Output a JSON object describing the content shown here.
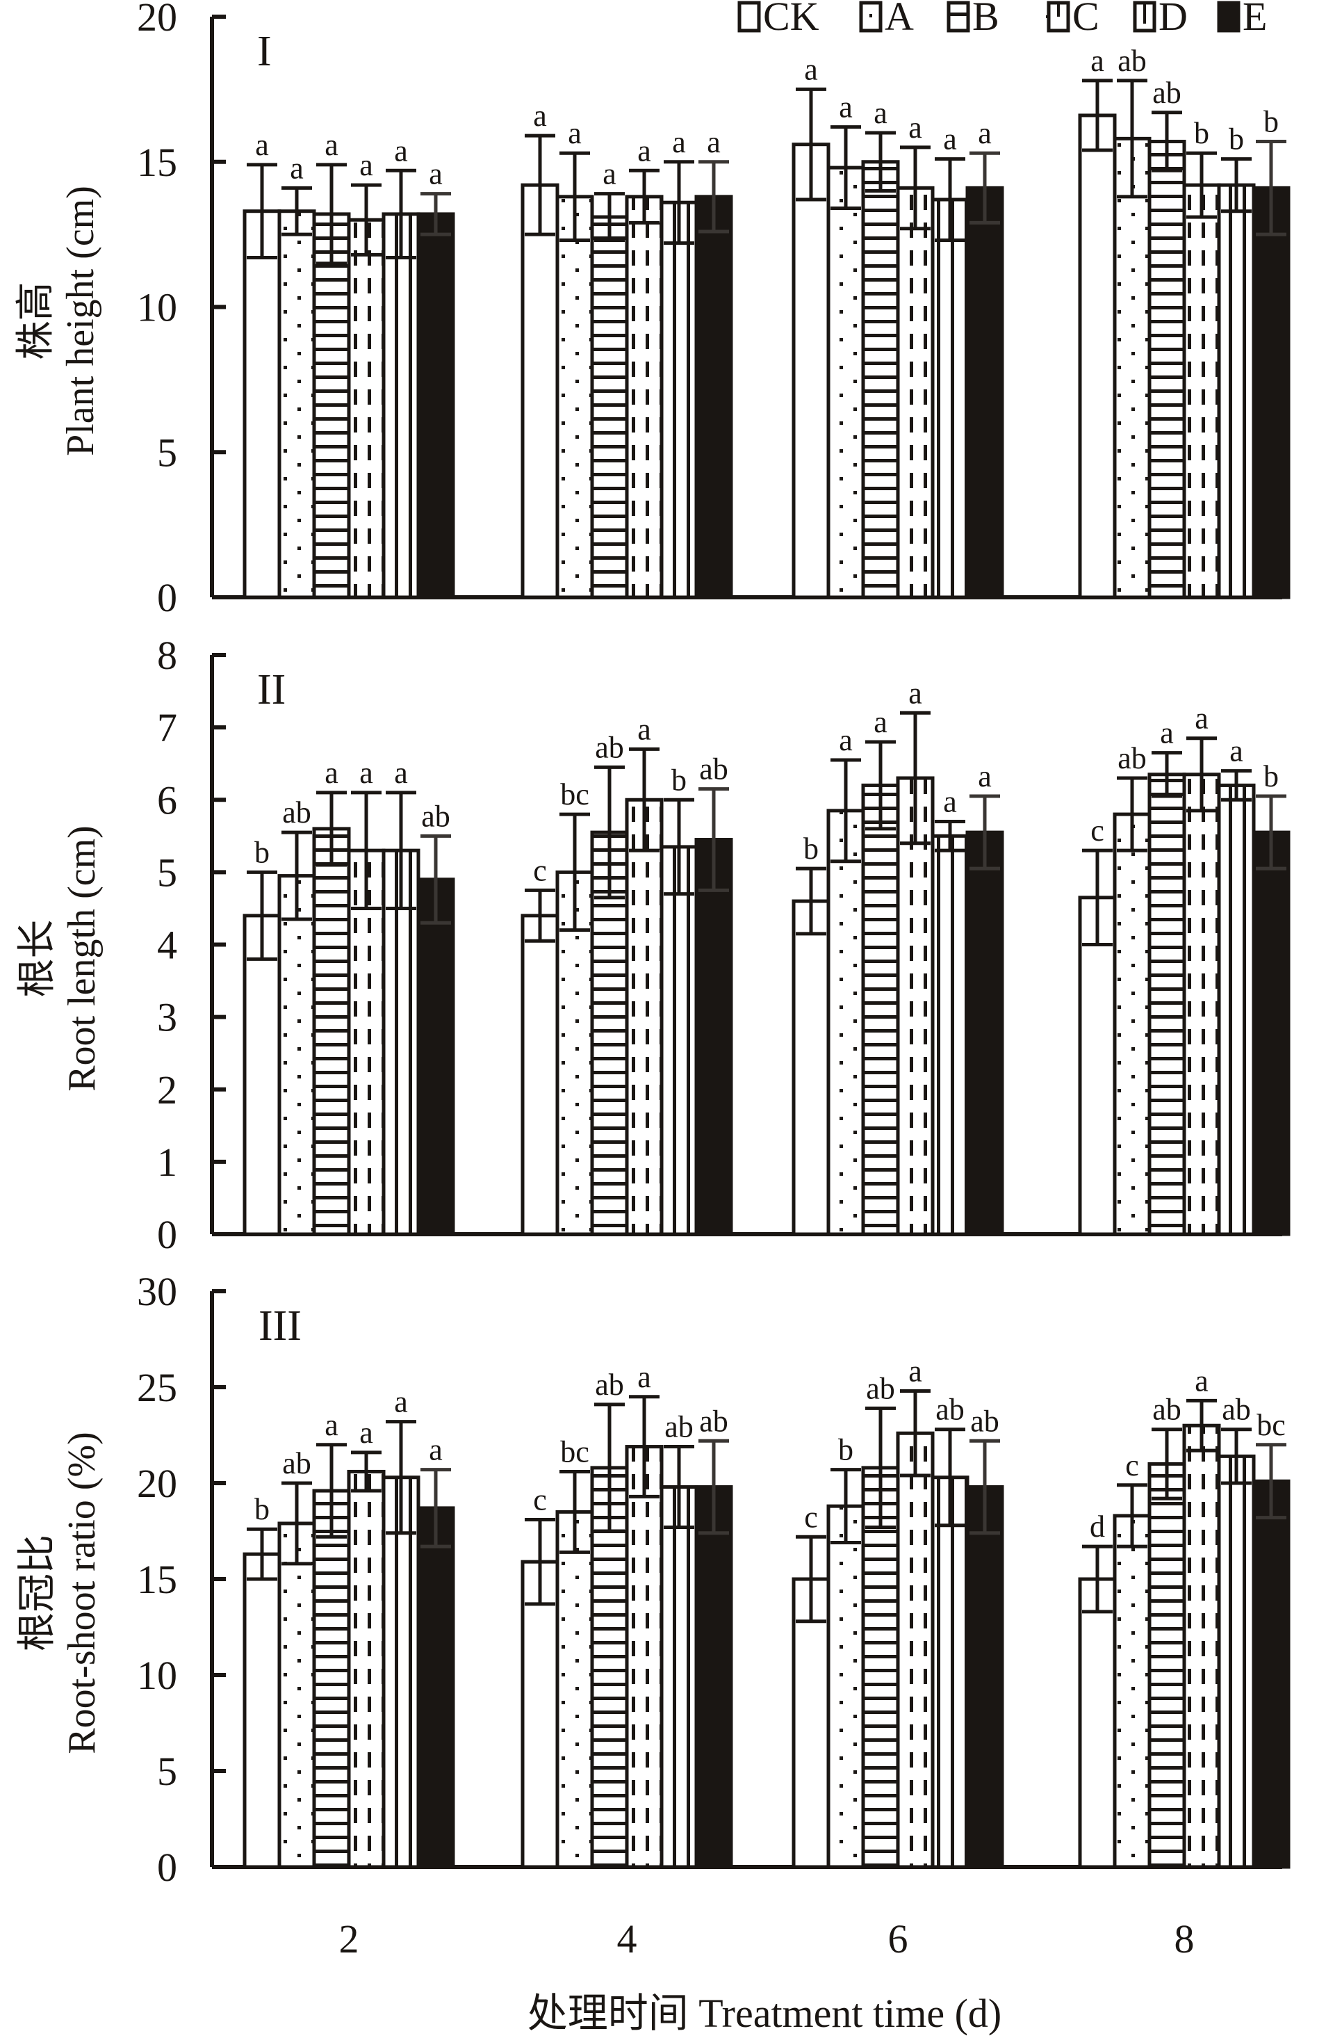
{
  "chart_data": {
    "type": "bar",
    "x_label": "处理时间 Treatment time (d)",
    "categories": [
      "2",
      "4",
      "6",
      "8"
    ],
    "legend": {
      "placement": "top-right",
      "entries": [
        {
          "name": "CK",
          "pattern": "empty"
        },
        {
          "name": "A",
          "pattern": "dots"
        },
        {
          "name": "B",
          "pattern": "horizontal-lines"
        },
        {
          "name": "C",
          "pattern": "dashed-vertical"
        },
        {
          "name": "D",
          "pattern": "vertical-lines"
        },
        {
          "name": "E",
          "pattern": "solid"
        }
      ]
    },
    "panels": [
      {
        "id": "I",
        "ylabel_cn": "株高",
        "ylabel_en": "Plant height (cm)",
        "ylim": [
          0,
          20
        ],
        "yticks": [
          0,
          5,
          10,
          15,
          20
        ],
        "series": [
          {
            "name": "CK",
            "values": [
              13.3,
              14.2,
              15.6,
              16.6
            ],
            "errors": [
              1.6,
              1.7,
              1.9,
              1.2
            ],
            "letters": [
              "a",
              "a",
              "a",
              "a"
            ]
          },
          {
            "name": "A",
            "values": [
              13.3,
              13.8,
              14.8,
              15.8
            ],
            "errors": [
              0.8,
              1.5,
              1.4,
              2.0
            ],
            "letters": [
              "a",
              "a",
              "a",
              "ab"
            ]
          },
          {
            "name": "B",
            "values": [
              13.2,
              13.1,
              15.0,
              15.7
            ],
            "errors": [
              1.7,
              0.8,
              1.0,
              1.0
            ],
            "letters": [
              "a",
              "a",
              "a",
              "ab"
            ]
          },
          {
            "name": "C",
            "values": [
              13.0,
              13.8,
              14.1,
              14.2
            ],
            "errors": [
              1.2,
              0.9,
              1.4,
              1.1
            ],
            "letters": [
              "a",
              "a",
              "a",
              "b"
            ]
          },
          {
            "name": "D",
            "values": [
              13.2,
              13.6,
              13.7,
              14.2
            ],
            "errors": [
              1.5,
              1.4,
              1.4,
              0.9
            ],
            "letters": [
              "a",
              "a",
              "a",
              "b"
            ]
          },
          {
            "name": "E",
            "values": [
              13.2,
              13.8,
              14.1,
              14.1
            ],
            "errors": [
              0.7,
              1.2,
              1.2,
              1.6
            ],
            "letters": [
              "a",
              "a",
              "a",
              "b"
            ]
          }
        ]
      },
      {
        "id": "II",
        "ylabel_cn": "根长",
        "ylabel_en": "Root length (cm)",
        "ylim": [
          0,
          8
        ],
        "yticks": [
          0,
          1,
          2,
          3,
          4,
          5,
          6,
          7,
          8
        ],
        "series": [
          {
            "name": "CK",
            "values": [
              4.4,
              4.4,
              4.6,
              4.65
            ],
            "errors": [
              0.6,
              0.35,
              0.45,
              0.65
            ],
            "letters": [
              "b",
              "c",
              "b",
              "c"
            ]
          },
          {
            "name": "A",
            "values": [
              4.95,
              5.0,
              5.85,
              5.8
            ],
            "errors": [
              0.6,
              0.8,
              0.7,
              0.5
            ],
            "letters": [
              "ab",
              "bc",
              "a",
              "ab"
            ]
          },
          {
            "name": "B",
            "values": [
              5.6,
              5.55,
              6.2,
              6.35
            ],
            "errors": [
              0.5,
              0.9,
              0.6,
              0.3
            ],
            "letters": [
              "a",
              "ab",
              "a",
              "a"
            ]
          },
          {
            "name": "C",
            "values": [
              5.3,
              6.0,
              6.3,
              6.35
            ],
            "errors": [
              0.8,
              0.7,
              0.9,
              0.5
            ],
            "letters": [
              "a",
              "a",
              "a",
              "a"
            ]
          },
          {
            "name": "D",
            "values": [
              5.3,
              5.35,
              5.5,
              6.2
            ],
            "errors": [
              0.8,
              0.65,
              0.2,
              0.2
            ],
            "letters": [
              "a",
              "b",
              "a",
              "a"
            ]
          },
          {
            "name": "E",
            "values": [
              4.9,
              5.45,
              5.55,
              5.55
            ],
            "errors": [
              0.6,
              0.7,
              0.5,
              0.5
            ],
            "letters": [
              "ab",
              "ab",
              "a",
              "b"
            ]
          }
        ]
      },
      {
        "id": "III",
        "ylabel_cn": "根冠比",
        "ylabel_en": "Root-shoot ratio (%)",
        "ylim": [
          0,
          30
        ],
        "yticks": [
          0,
          5,
          10,
          15,
          20,
          25,
          30
        ],
        "series": [
          {
            "name": "CK",
            "values": [
              16.3,
              15.9,
              15.0,
              15.0
            ],
            "errors": [
              1.3,
              2.2,
              2.2,
              1.7
            ],
            "letters": [
              "b",
              "c",
              "c",
              "d"
            ]
          },
          {
            "name": "A",
            "values": [
              17.9,
              18.5,
              18.8,
              18.3
            ],
            "errors": [
              2.1,
              2.1,
              1.9,
              1.6
            ],
            "letters": [
              "ab",
              "bc",
              "b",
              "c"
            ]
          },
          {
            "name": "B",
            "values": [
              19.6,
              20.8,
              20.8,
              21.0
            ],
            "errors": [
              2.4,
              3.3,
              3.1,
              1.8
            ],
            "letters": [
              "a",
              "ab",
              "ab",
              "ab"
            ]
          },
          {
            "name": "C",
            "values": [
              20.6,
              21.9,
              22.6,
              23.0
            ],
            "errors": [
              1.0,
              2.6,
              2.2,
              1.3
            ],
            "letters": [
              "a",
              "a",
              "a",
              "a"
            ]
          },
          {
            "name": "D",
            "values": [
              20.3,
              19.8,
              20.3,
              21.4
            ],
            "errors": [
              2.9,
              2.1,
              2.5,
              1.4
            ],
            "letters": [
              "a",
              "ab",
              "ab",
              "ab"
            ]
          },
          {
            "name": "E",
            "values": [
              18.7,
              19.8,
              19.8,
              20.1
            ],
            "errors": [
              2.0,
              2.4,
              2.4,
              1.9
            ],
            "letters": [
              "a",
              "ab",
              "ab",
              "bc"
            ]
          }
        ]
      }
    ]
  }
}
